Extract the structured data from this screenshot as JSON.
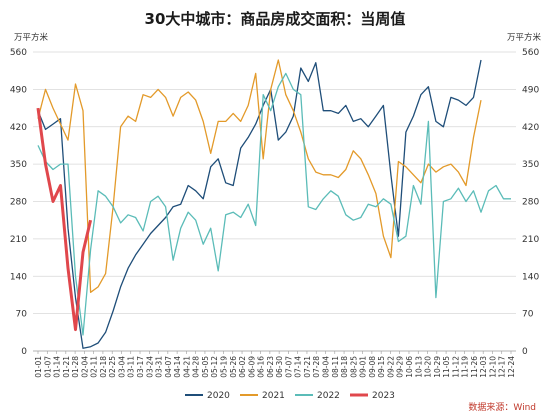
{
  "chart_data": {
    "type": "line",
    "title": "30大中城市：商品房成交面积：当周值",
    "ylabel_left": "万平方米",
    "ylabel_right": "万平方米",
    "ylim": [
      0,
      560
    ],
    "yticks": [
      0,
      70,
      140,
      210,
      280,
      350,
      420,
      490,
      560
    ],
    "grid": true,
    "legend_position": "bottom",
    "source": "数据来源：Wind",
    "x_ticks": [
      "01-01",
      "01-07",
      "01-14",
      "01-21",
      "01-28",
      "02-04",
      "02-11",
      "02-18",
      "02-25",
      "03-04",
      "03-11",
      "03-17",
      "03-24",
      "03-31",
      "04-07",
      "04-14",
      "04-21",
      "04-28",
      "05-05",
      "05-12",
      "05-19",
      "05-26",
      "06-02",
      "06-09",
      "06-16",
      "06-23",
      "06-30",
      "07-07",
      "07-14",
      "07-21",
      "07-28",
      "08-04",
      "08-11",
      "08-18",
      "08-25",
      "09-01",
      "09-08",
      "09-15",
      "09-22",
      "09-29",
      "10-06",
      "10-13",
      "10-20",
      "10-29",
      "11-05",
      "11-12",
      "11-19",
      "11-26",
      "12-03",
      "12-10",
      "12-17",
      "12-24"
    ],
    "series": [
      {
        "name": "2020",
        "color": "#1f4e79",
        "values": [
          450,
          415,
          425,
          435,
          230,
          100,
          5,
          8,
          15,
          35,
          75,
          120,
          155,
          180,
          200,
          220,
          235,
          250,
          270,
          275,
          310,
          300,
          285,
          345,
          360,
          315,
          310,
          380,
          400,
          425,
          460,
          490,
          395,
          410,
          440,
          530,
          505,
          540,
          450,
          450,
          445,
          460,
          430,
          435,
          420,
          440,
          460,
          330,
          215,
          410,
          440,
          480,
          495,
          430,
          420,
          475,
          470,
          460,
          475,
          545
        ]
      },
      {
        "name": "2021",
        "color": "#e39a2a",
        "values": [
          435,
          490,
          455,
          425,
          395,
          500,
          450,
          110,
          120,
          145,
          270,
          420,
          440,
          430,
          480,
          475,
          490,
          475,
          440,
          475,
          485,
          470,
          430,
          370,
          430,
          430,
          445,
          430,
          460,
          520,
          360,
          490,
          545,
          480,
          450,
          410,
          360,
          335,
          330,
          330,
          325,
          340,
          375,
          360,
          330,
          295,
          215,
          175,
          355,
          345,
          330,
          315,
          350,
          335,
          345,
          350,
          335,
          310,
          400,
          470
        ]
      },
      {
        "name": "2022",
        "color": "#5bbcb8",
        "values": [
          385,
          355,
          340,
          350,
          350,
          140,
          30,
          190,
          300,
          290,
          270,
          240,
          255,
          250,
          225,
          280,
          290,
          270,
          170,
          230,
          260,
          245,
          200,
          230,
          150,
          255,
          260,
          250,
          275,
          235,
          480,
          450,
          495,
          520,
          490,
          480,
          270,
          265,
          285,
          300,
          290,
          255,
          245,
          250,
          275,
          270,
          285,
          275,
          205,
          215,
          310,
          275,
          430,
          100,
          280,
          285,
          305,
          280,
          300,
          260,
          300,
          310,
          285,
          285
        ]
      },
      {
        "name": "2023",
        "color": "#e0474c",
        "values": [
          455,
          350,
          280,
          310,
          155,
          40,
          185,
          245
        ]
      }
    ]
  }
}
